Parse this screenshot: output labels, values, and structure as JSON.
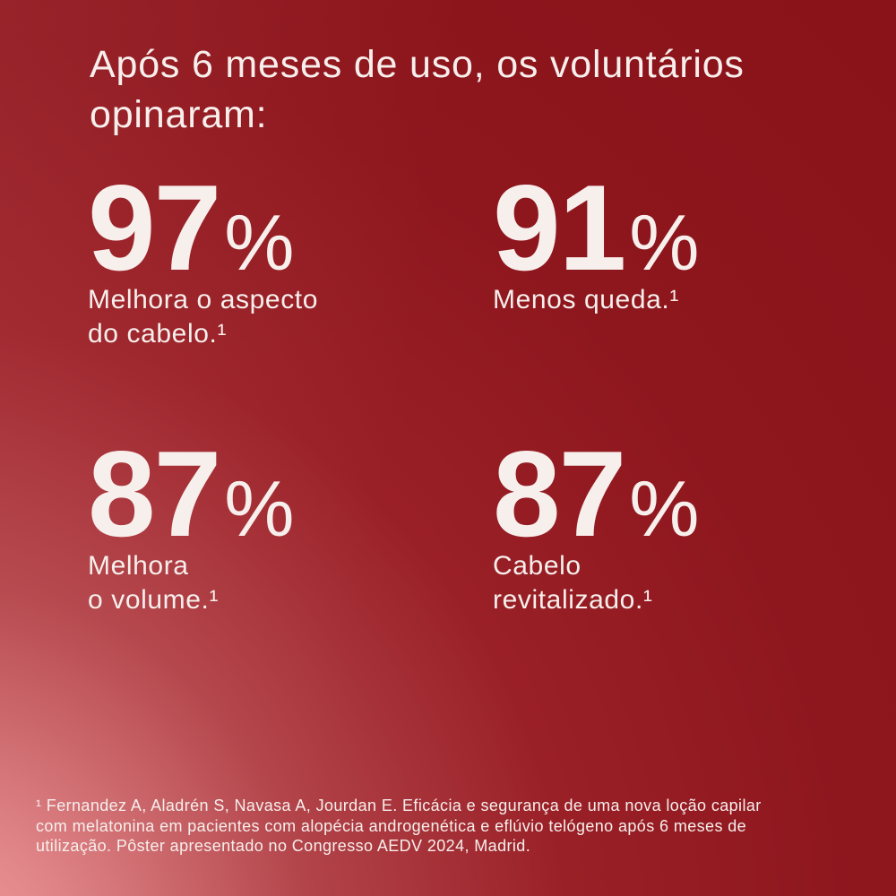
{
  "colors": {
    "background_base": "#8a131a",
    "background_mid": "#9a2027",
    "background_glow": "#f29b9d",
    "text": "#f7efec"
  },
  "title": {
    "lines": [
      "Após 6 meses de uso, os voluntários",
      "opinaram:"
    ]
  },
  "stats": [
    {
      "value": "97",
      "unit": "%",
      "label_lines": [
        "Melhora o aspecto",
        "do cabelo.¹"
      ]
    },
    {
      "value": "91",
      "unit": "%",
      "label_lines": [
        "Menos queda.¹",
        ""
      ]
    },
    {
      "value": "87",
      "unit": "%",
      "label_lines": [
        "Melhora",
        "o volume.¹"
      ]
    },
    {
      "value": "87",
      "unit": "%",
      "label_lines": [
        "Cabelo",
        "revitalizado.¹"
      ]
    }
  ],
  "footnote": {
    "lines": [
      "¹ Fernandez A, Aladrén S, Navasa A, Jourdan E. Eficácia e segurança de uma nova loção capilar",
      "com melatonina em pacientes com alopécia androgenética e eflúvio telógeno após 6 meses de",
      "utilização. Pôster apresentado no Congresso AEDV 2024, Madrid."
    ]
  }
}
